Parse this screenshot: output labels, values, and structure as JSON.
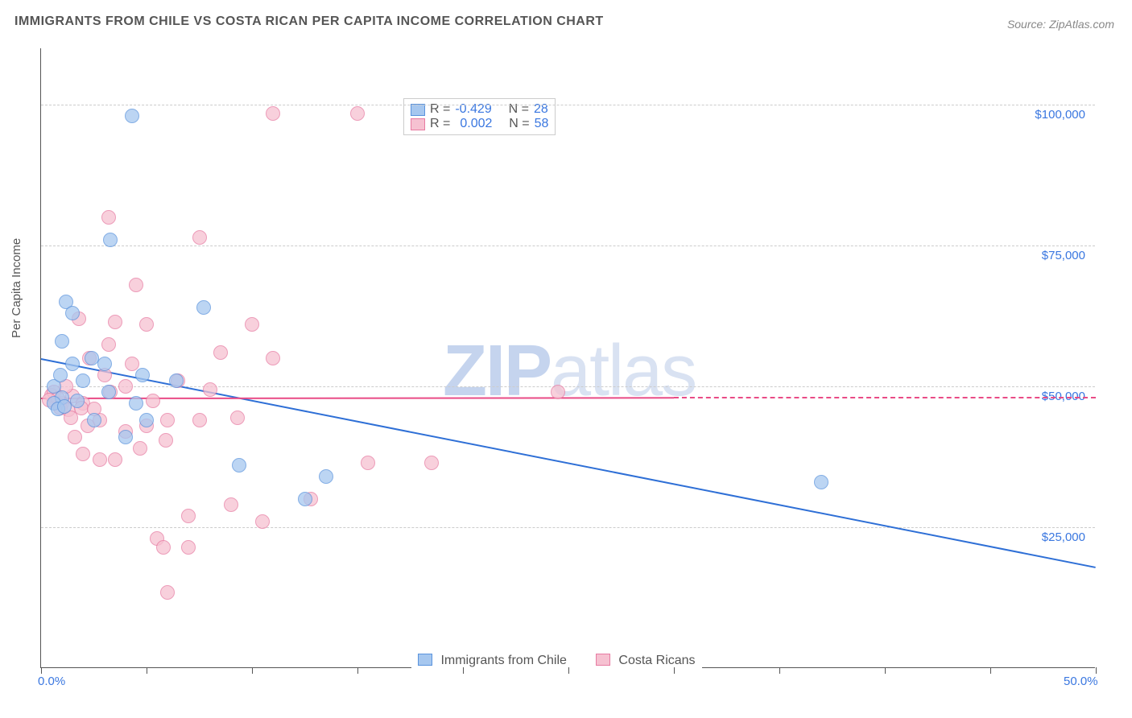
{
  "title": "IMMIGRANTS FROM CHILE VS COSTA RICAN PER CAPITA INCOME CORRELATION CHART",
  "source": "Source: ZipAtlas.com",
  "watermark_a": "ZIP",
  "watermark_b": "atlas",
  "y_axis_label": "Per Capita Income",
  "chart": {
    "type": "scatter",
    "background_color": "#ffffff",
    "grid_color": "#cccccc",
    "axis_color": "#555555",
    "label_color": "#3a77e0",
    "watermark_color": "#c5d4ee",
    "xlim": [
      0,
      50
    ],
    "ylim": [
      0,
      110000
    ],
    "x_ticks_pct": [
      0,
      5,
      10,
      15,
      20,
      25,
      30,
      35,
      40,
      45,
      50
    ],
    "x_tick_labels": {
      "0": "0.0%",
      "50": "50.0%"
    },
    "y_gridlines": [
      25000,
      50000,
      75000,
      100000
    ],
    "y_tick_labels": {
      "25000": "$25,000",
      "50000": "$50,000",
      "75000": "$75,000",
      "100000": "$100,000"
    },
    "point_radius": 9,
    "point_opacity": 0.4,
    "series": [
      {
        "name": "Immigrants from Chile",
        "fill_color": "#a6c7ef",
        "stroke_color": "#5a93dd",
        "r_stat": "-0.429",
        "n_stat": "28",
        "trend": {
          "color": "#2e6fd6",
          "width": 2,
          "y_start": 55000,
          "y_end": 18000,
          "x_start": 0,
          "x_end": 50,
          "dashed_from": 50
        },
        "points": [
          [
            4.3,
            98000
          ],
          [
            3.3,
            76000
          ],
          [
            1.2,
            65000
          ],
          [
            1.5,
            63000
          ],
          [
            7.7,
            64000
          ],
          [
            1.0,
            58000
          ],
          [
            1.5,
            54000
          ],
          [
            2.4,
            55000
          ],
          [
            3.0,
            54000
          ],
          [
            4.8,
            52000
          ],
          [
            6.4,
            51000
          ],
          [
            4.5,
            47000
          ],
          [
            1.0,
            48000
          ],
          [
            0.6,
            47000
          ],
          [
            0.8,
            46000
          ],
          [
            1.1,
            46500
          ],
          [
            4.0,
            41000
          ],
          [
            9.4,
            36000
          ],
          [
            13.5,
            34000
          ],
          [
            12.5,
            30000
          ],
          [
            37.0,
            33000
          ],
          [
            2.5,
            44000
          ],
          [
            3.2,
            49000
          ],
          [
            0.6,
            50000
          ],
          [
            0.9,
            52000
          ],
          [
            2.0,
            51000
          ],
          [
            5.0,
            44000
          ],
          [
            1.7,
            47500
          ]
        ]
      },
      {
        "name": "Costa Ricans",
        "fill_color": "#f6c1d1",
        "stroke_color": "#e77ba2",
        "r_stat": "0.002",
        "n_stat": "58",
        "trend": {
          "color": "#e94b86",
          "width": 2,
          "y_start": 48000,
          "y_end": 48100,
          "x_start": 0,
          "x_end": 30,
          "dashed_from": 30
        },
        "points": [
          [
            11.0,
            98500
          ],
          [
            15.0,
            98500
          ],
          [
            3.2,
            80000
          ],
          [
            7.5,
            76500
          ],
          [
            4.5,
            68000
          ],
          [
            1.8,
            62000
          ],
          [
            3.5,
            61500
          ],
          [
            5.0,
            61000
          ],
          [
            10.0,
            61000
          ],
          [
            8.5,
            56000
          ],
          [
            11.0,
            55000
          ],
          [
            3.2,
            57500
          ],
          [
            2.3,
            55000
          ],
          [
            6.5,
            51000
          ],
          [
            5.3,
            47500
          ],
          [
            3.3,
            49000
          ],
          [
            1.0,
            47000
          ],
          [
            1.5,
            48300
          ],
          [
            0.7,
            47200
          ],
          [
            0.9,
            46200
          ],
          [
            1.3,
            45800
          ],
          [
            2.0,
            47000
          ],
          [
            0.5,
            48500
          ],
          [
            24.5,
            49000
          ],
          [
            2.8,
            44000
          ],
          [
            6.0,
            44000
          ],
          [
            5.0,
            43000
          ],
          [
            4.0,
            42000
          ],
          [
            7.5,
            44000
          ],
          [
            9.3,
            44500
          ],
          [
            1.6,
            41000
          ],
          [
            2.0,
            38000
          ],
          [
            2.8,
            37000
          ],
          [
            3.5,
            37000
          ],
          [
            15.5,
            36500
          ],
          [
            18.5,
            36500
          ],
          [
            12.8,
            30000
          ],
          [
            9.0,
            29000
          ],
          [
            7.0,
            27000
          ],
          [
            10.5,
            26000
          ],
          [
            5.5,
            23000
          ],
          [
            5.8,
            21500
          ],
          [
            7.0,
            21500
          ],
          [
            6.0,
            13500
          ],
          [
            4.3,
            54000
          ],
          [
            3.0,
            52000
          ],
          [
            4.0,
            50000
          ],
          [
            1.2,
            50000
          ],
          [
            0.6,
            49000
          ],
          [
            0.8,
            47800
          ],
          [
            1.9,
            46200
          ],
          [
            2.5,
            46000
          ],
          [
            8.0,
            49500
          ],
          [
            5.9,
            40500
          ],
          [
            4.7,
            39000
          ],
          [
            1.4,
            44500
          ],
          [
            2.2,
            43000
          ],
          [
            0.4,
            47600
          ]
        ]
      }
    ]
  },
  "legend_bottom": {
    "items": [
      {
        "label": "Immigrants from Chile",
        "fill": "#a6c7ef",
        "stroke": "#5a93dd"
      },
      {
        "label": "Costa Ricans",
        "fill": "#f6c1d1",
        "stroke": "#e77ba2"
      }
    ]
  },
  "stat_labels": {
    "r": "R =",
    "n": "N ="
  }
}
